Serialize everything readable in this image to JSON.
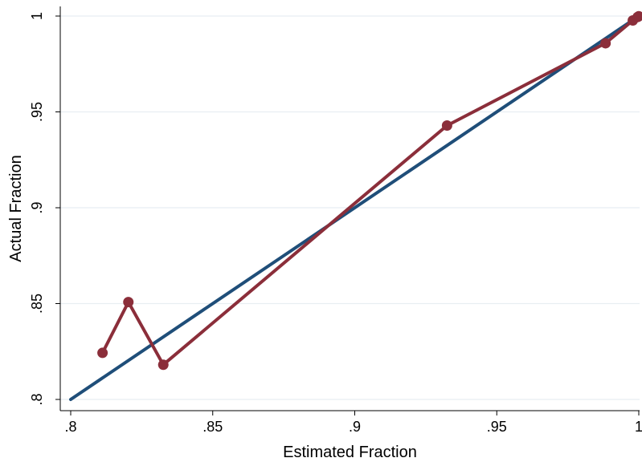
{
  "chart_data": {
    "type": "line",
    "xlabel": "Estimated Fraction",
    "ylabel": "Actual Fraction",
    "xlim": [
      0.8,
      1.0
    ],
    "ylim": [
      0.8,
      1.0
    ],
    "x_ticks": [
      {
        "value": 0.8,
        "label": ".8"
      },
      {
        "value": 0.85,
        "label": ".85"
      },
      {
        "value": 0.9,
        "label": ".9"
      },
      {
        "value": 0.95,
        "label": ".95"
      },
      {
        "value": 1.0,
        "label": "1"
      }
    ],
    "y_ticks": [
      {
        "value": 0.8,
        "label": ".8"
      },
      {
        "value": 0.85,
        "label": ".85"
      },
      {
        "value": 0.9,
        "label": ".9"
      },
      {
        "value": 0.95,
        "label": ".95"
      },
      {
        "value": 1.0,
        "label": "1"
      }
    ],
    "grid": "horizontal",
    "series": [
      {
        "kind": "reference-line",
        "color": "#1f4e79",
        "x": [
          0.8,
          1.0
        ],
        "y": [
          0.8,
          1.0
        ]
      },
      {
        "kind": "line-with-markers",
        "color": "#8b2e3a",
        "x": [
          0.8112,
          0.8203,
          0.8326,
          0.9325,
          0.9883,
          0.9979,
          0.9996,
          1.0
        ],
        "y": [
          0.8243,
          0.8508,
          0.8181,
          0.9429,
          0.9858,
          0.9977,
          0.9995,
          0.9999
        ]
      }
    ]
  }
}
